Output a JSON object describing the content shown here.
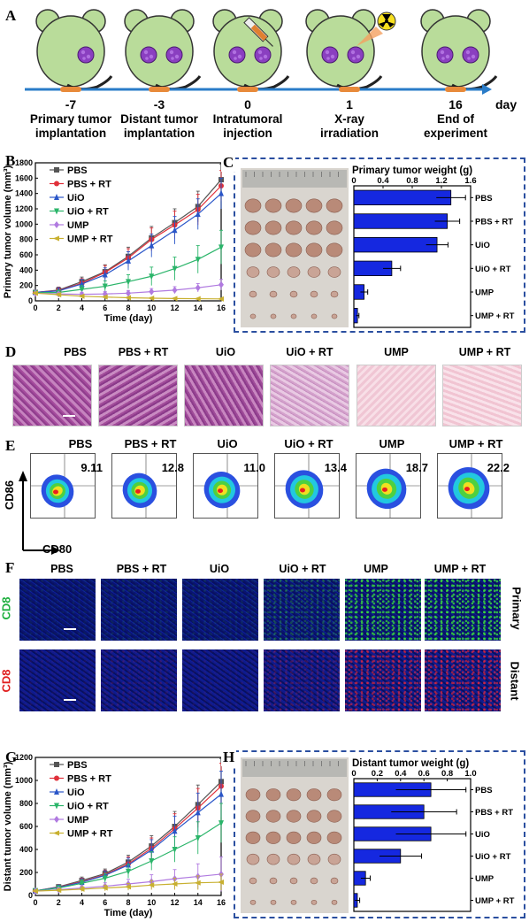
{
  "panels": {
    "A": "A",
    "B": "B",
    "C": "C",
    "D": "D",
    "E": "E",
    "F": "F",
    "G": "G",
    "H": "H"
  },
  "timeline": {
    "unit": "day",
    "points": [
      {
        "day": "-7",
        "caption1": "Primary tumor",
        "caption2": "implantation"
      },
      {
        "day": "-3",
        "caption1": "Distant tumor",
        "caption2": "implantation"
      },
      {
        "day": "0",
        "caption1": "Intratumoral",
        "caption2": "injection"
      },
      {
        "day": "1",
        "caption1": "X-ray",
        "caption2": "irradiation"
      },
      {
        "day": "16",
        "caption1": "End of",
        "caption2": "experiment"
      }
    ]
  },
  "groups": [
    "PBS",
    "PBS + RT",
    "UiO",
    "UiO + RT",
    "UMP",
    "UMP + RT"
  ],
  "colors": {
    "PBS": "#555555",
    "PBS + RT": "#e0303a",
    "UiO": "#2a56c8",
    "UiO + RT": "#2bb56a",
    "UMP": "#b07ae0",
    "UMP + RT": "#c8b030",
    "bar": "#1528e0",
    "dash": "#2b4fa0"
  },
  "flow": {
    "xlabel": "CD80",
    "ylabel": "CD86",
    "values": [
      "9.11",
      "12.8",
      "11.0",
      "13.4",
      "18.7",
      "22.2"
    ]
  },
  "fluor": {
    "row1_label": "CD8",
    "row1_side": "Primary",
    "row2_label": "CD8",
    "row2_side": "Distant"
  },
  "chart_data": [
    {
      "type": "line",
      "panel": "B",
      "xlabel": "Time (day)",
      "ylabel": "Primary tumor volume (mm³)",
      "xlim": [
        0,
        16
      ],
      "ylim": [
        0,
        1800
      ],
      "x": [
        0,
        2,
        4,
        6,
        8,
        10,
        12,
        14,
        16
      ],
      "xticks": [
        "0",
        "2",
        "4",
        "6",
        "8",
        "10",
        "12",
        "14",
        "16"
      ],
      "yticks": [
        "0",
        "200",
        "400",
        "600",
        "800",
        "1000",
        "1200",
        "1400",
        "1600",
        "1800"
      ],
      "legend_position": "top-left",
      "series": [
        {
          "name": "PBS",
          "values": [
            110,
            140,
            250,
            380,
            580,
            820,
            1020,
            1230,
            1580
          ],
          "err": [
            20,
            40,
            60,
            90,
            120,
            150,
            180,
            200,
            200
          ]
        },
        {
          "name": "PBS + RT",
          "values": [
            110,
            135,
            230,
            370,
            560,
            800,
            990,
            1190,
            1500
          ],
          "err": [
            20,
            40,
            60,
            90,
            120,
            150,
            180,
            200,
            200
          ]
        },
        {
          "name": "UiO",
          "values": [
            110,
            130,
            220,
            340,
            520,
            720,
            920,
            1130,
            1400
          ],
          "err": [
            20,
            40,
            60,
            90,
            120,
            150,
            180,
            200,
            200
          ]
        },
        {
          "name": "UiO + RT",
          "values": [
            105,
            110,
            150,
            190,
            250,
            320,
            420,
            540,
            700
          ],
          "err": [
            15,
            30,
            50,
            70,
            90,
            120,
            150,
            180,
            220
          ]
        },
        {
          "name": "UMP",
          "values": [
            100,
            90,
            85,
            90,
            100,
            120,
            140,
            170,
            210
          ],
          "err": [
            15,
            20,
            25,
            30,
            35,
            40,
            45,
            55,
            70
          ]
        },
        {
          "name": "UMP + RT",
          "values": [
            100,
            80,
            60,
            50,
            40,
            35,
            30,
            28,
            25
          ],
          "err": [
            15,
            20,
            15,
            12,
            10,
            10,
            8,
            8,
            8
          ]
        }
      ]
    },
    {
      "type": "bar",
      "panel": "C",
      "title": "Primary tumor weight (g)",
      "xlim": [
        0,
        1.6
      ],
      "xticks": [
        "0",
        "0.4",
        "0.8",
        "1.2",
        "1.6"
      ],
      "categories": [
        "PBS",
        "PBS + RT",
        "UiO",
        "UiO + RT",
        "UMP",
        "UMP + RT"
      ],
      "values": [
        1.33,
        1.28,
        1.14,
        0.52,
        0.14,
        0.05
      ],
      "err": [
        0.2,
        0.17,
        0.15,
        0.12,
        0.05,
        0.02
      ]
    },
    {
      "type": "line",
      "panel": "G",
      "xlabel": "Time (day)",
      "ylabel": "Distant tumor volume (mm³)",
      "xlim": [
        0,
        16
      ],
      "ylim": [
        0,
        1200
      ],
      "x": [
        0,
        2,
        4,
        6,
        8,
        10,
        12,
        14,
        16
      ],
      "xticks": [
        "0",
        "2",
        "4",
        "6",
        "8",
        "10",
        "12",
        "14",
        "16"
      ],
      "yticks": [
        "0",
        "200",
        "400",
        "600",
        "800",
        "1000",
        "1200"
      ],
      "legend_position": "top-left",
      "series": [
        {
          "name": "PBS",
          "values": [
            40,
            75,
            130,
            190,
            290,
            430,
            600,
            790,
            990
          ],
          "err": [
            10,
            20,
            30,
            40,
            60,
            90,
            130,
            170,
            200
          ]
        },
        {
          "name": "PBS + RT",
          "values": [
            40,
            72,
            120,
            180,
            275,
            410,
            580,
            760,
            950
          ],
          "err": [
            10,
            20,
            30,
            40,
            60,
            90,
            130,
            170,
            200
          ]
        },
        {
          "name": "UiO",
          "values": [
            40,
            70,
            115,
            175,
            265,
            395,
            560,
            720,
            880
          ],
          "err": [
            10,
            20,
            30,
            40,
            60,
            90,
            130,
            170,
            200
          ]
        },
        {
          "name": "UiO + RT",
          "values": [
            40,
            65,
            105,
            150,
            210,
            300,
            400,
            500,
            630
          ],
          "err": [
            10,
            20,
            30,
            40,
            60,
            80,
            110,
            140,
            170
          ]
        },
        {
          "name": "UMP",
          "values": [
            38,
            50,
            65,
            80,
            100,
            120,
            145,
            165,
            185
          ],
          "err": [
            10,
            15,
            20,
            30,
            40,
            60,
            80,
            110,
            150
          ]
        },
        {
          "name": "UMP + RT",
          "values": [
            38,
            45,
            55,
            65,
            75,
            90,
            100,
            110,
            115
          ],
          "err": [
            10,
            15,
            20,
            25,
            30,
            40,
            50,
            60,
            70
          ]
        }
      ]
    },
    {
      "type": "bar",
      "panel": "H",
      "title": "Distant tumor weight (g)",
      "xlim": [
        0,
        1.0
      ],
      "xticks": [
        "0",
        "0.2",
        "0.4",
        "0.6",
        "0.8",
        "1.0"
      ],
      "categories": [
        "PBS",
        "PBS + RT",
        "UiO",
        "UiO + RT",
        "UMP",
        "UMP + RT"
      ],
      "values": [
        0.66,
        0.6,
        0.66,
        0.4,
        0.1,
        0.03
      ],
      "err": [
        0.3,
        0.28,
        0.3,
        0.18,
        0.04,
        0.02
      ]
    }
  ]
}
